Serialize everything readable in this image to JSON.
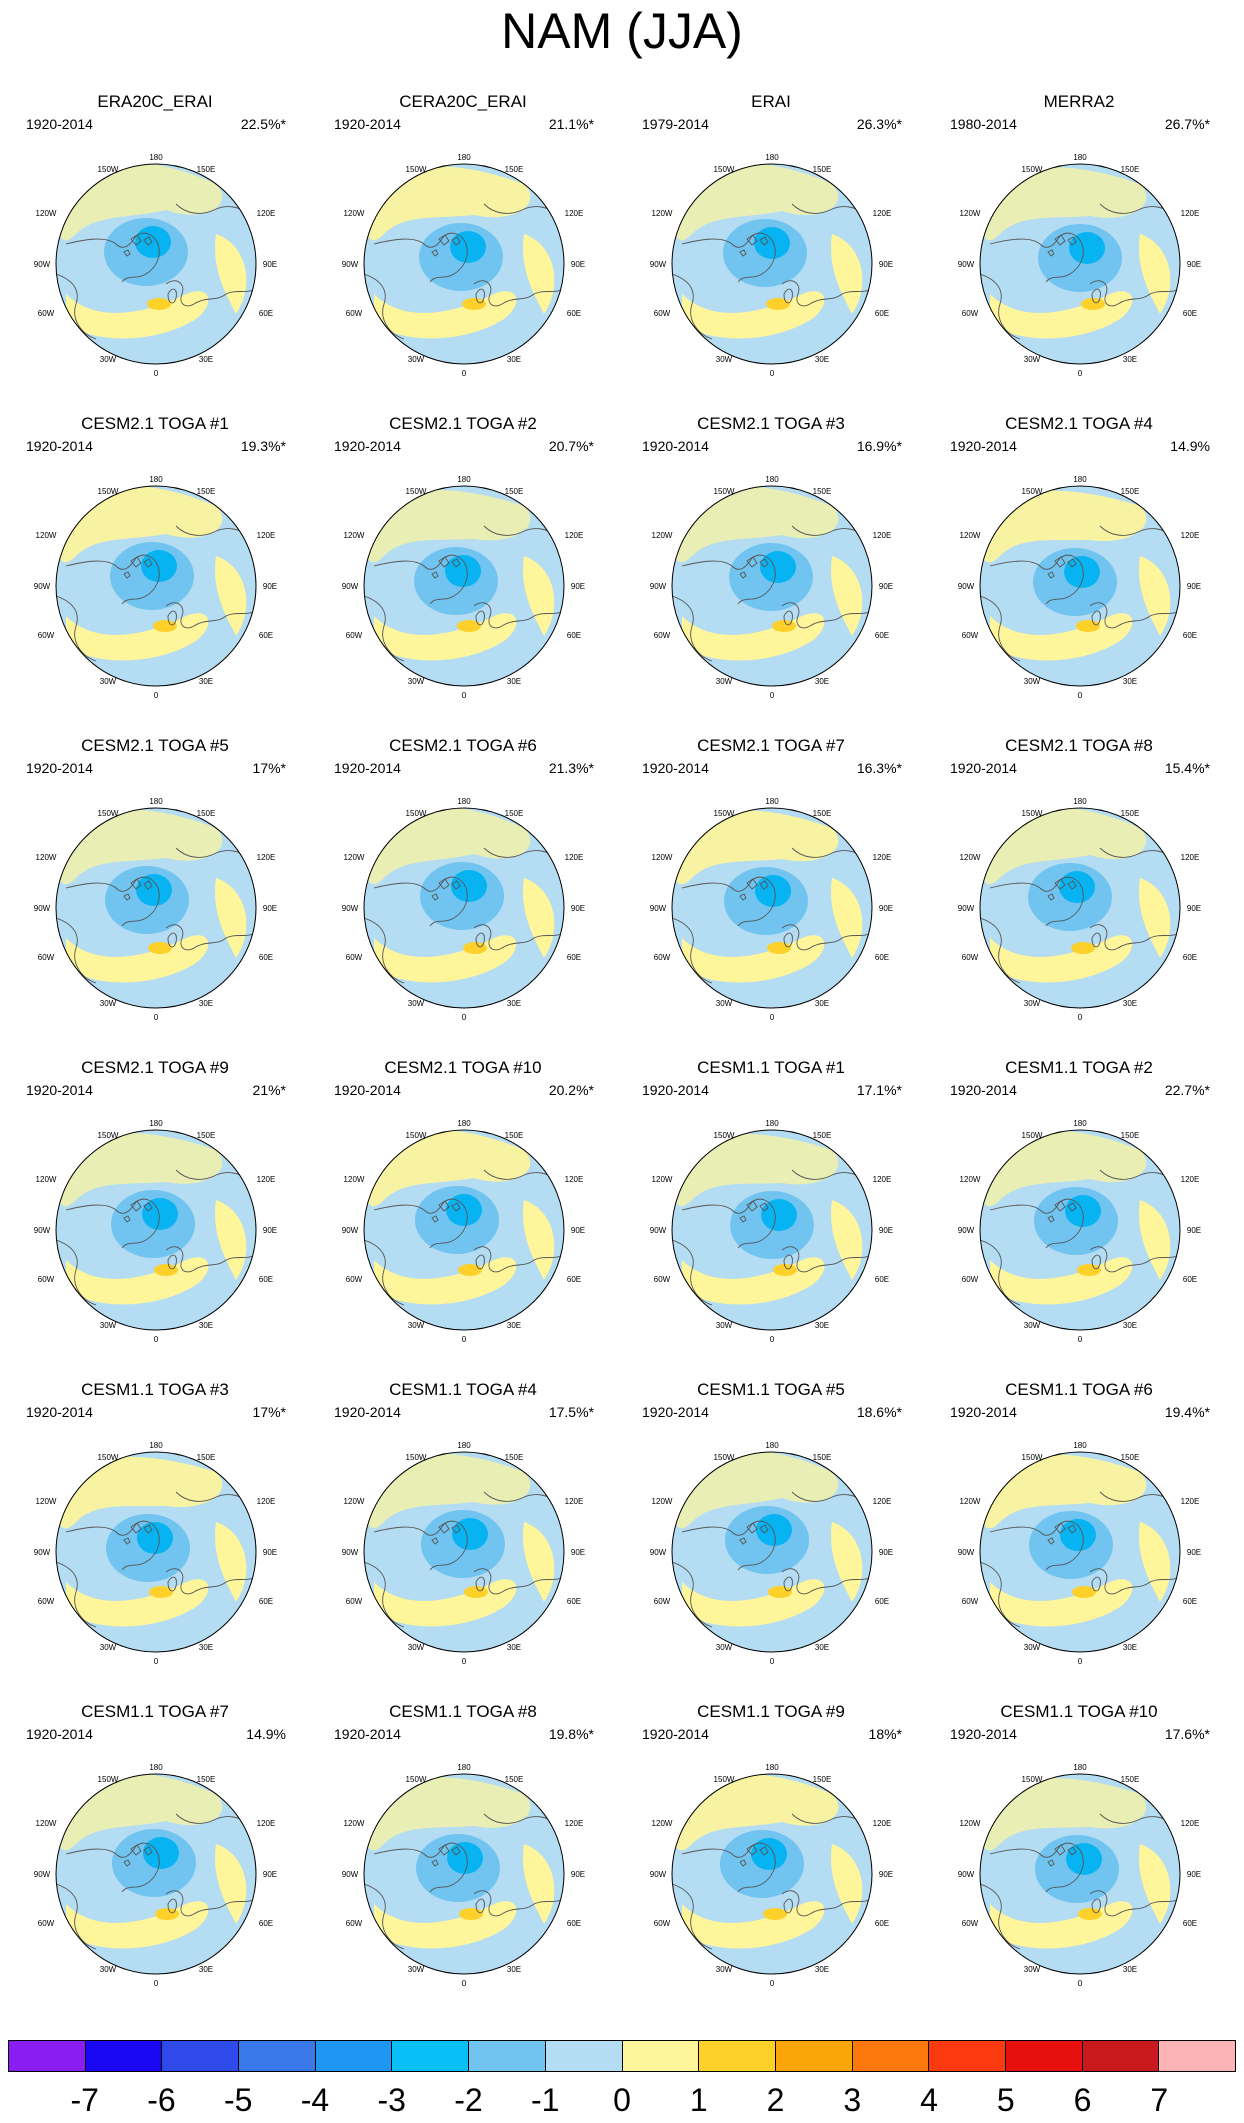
{
  "title": "NAM (JJA)",
  "colors": {
    "ocean_blue": "#b4dcf2",
    "light_yellow": "#fff59a",
    "yellow_orange": "#fdd12a",
    "medium_blue": "#72c4f0",
    "deep_blue": "#08b3f2",
    "coast": "#555555"
  },
  "map_labels": {
    "top": "180",
    "bottom": "0",
    "tl": "150W",
    "tr": "150E",
    "ul": "120W",
    "ur": "120E",
    "ml": "90W",
    "mr": "90E",
    "ll": "60W",
    "lr": "60E",
    "bl": "30W",
    "br": "30E"
  },
  "panels": [
    {
      "title": "ERA20C_ERAI",
      "period": "1920-2014",
      "percent": "22.5%*"
    },
    {
      "title": "CERA20C_ERAI",
      "period": "1920-2014",
      "percent": "21.1%*"
    },
    {
      "title": "ERAI",
      "period": "1979-2014",
      "percent": "26.3%*"
    },
    {
      "title": "MERRA2",
      "period": "1980-2014",
      "percent": "26.7%*"
    },
    {
      "title": "CESM2.1 TOGA #1",
      "period": "1920-2014",
      "percent": "19.3%*"
    },
    {
      "title": "CESM2.1 TOGA #2",
      "period": "1920-2014",
      "percent": "20.7%*"
    },
    {
      "title": "CESM2.1 TOGA #3",
      "period": "1920-2014",
      "percent": "16.9%*"
    },
    {
      "title": "CESM2.1 TOGA #4",
      "period": "1920-2014",
      "percent": "14.9%"
    },
    {
      "title": "CESM2.1 TOGA #5",
      "period": "1920-2014",
      "percent": "17%*"
    },
    {
      "title": "CESM2.1 TOGA #6",
      "period": "1920-2014",
      "percent": "21.3%*"
    },
    {
      "title": "CESM2.1 TOGA #7",
      "period": "1920-2014",
      "percent": "16.3%*"
    },
    {
      "title": "CESM2.1 TOGA #8",
      "period": "1920-2014",
      "percent": "15.4%*"
    },
    {
      "title": "CESM2.1 TOGA #9",
      "period": "1920-2014",
      "percent": "21%*"
    },
    {
      "title": "CESM2.1 TOGA #10",
      "period": "1920-2014",
      "percent": "20.2%*"
    },
    {
      "title": "CESM1.1 TOGA #1",
      "period": "1920-2014",
      "percent": "17.1%*"
    },
    {
      "title": "CESM1.1 TOGA #2",
      "period": "1920-2014",
      "percent": "22.7%*"
    },
    {
      "title": "CESM1.1 TOGA #3",
      "period": "1920-2014",
      "percent": "17%*"
    },
    {
      "title": "CESM1.1 TOGA #4",
      "period": "1920-2014",
      "percent": "17.5%*"
    },
    {
      "title": "CESM1.1 TOGA #5",
      "period": "1920-2014",
      "percent": "18.6%*"
    },
    {
      "title": "CESM1.1 TOGA #6",
      "period": "1920-2014",
      "percent": "19.4%*"
    },
    {
      "title": "CESM1.1 TOGA #7",
      "period": "1920-2014",
      "percent": "14.9%"
    },
    {
      "title": "CESM1.1 TOGA #8",
      "period": "1920-2014",
      "percent": "19.8%*"
    },
    {
      "title": "CESM1.1 TOGA #9",
      "period": "1920-2014",
      "percent": "18%*"
    },
    {
      "title": "CESM1.1 TOGA #10",
      "period": "1920-2014",
      "percent": "17.6%*"
    }
  ],
  "colorbar": {
    "colors": [
      "#8a1ef2",
      "#1a08f5",
      "#2f4ae8",
      "#3a78e8",
      "#1e96f2",
      "#08c0f5",
      "#72c4f0",
      "#b4dcf2",
      "#fff59a",
      "#fdd12a",
      "#fca50a",
      "#fc780a",
      "#fc3a0f",
      "#e8100f",
      "#c81a1e",
      "#fcb4b4"
    ],
    "ticks": [
      "-7",
      "-6",
      "-5",
      "-4",
      "-3",
      "-2",
      "-1",
      "0",
      "1",
      "2",
      "3",
      "4",
      "5",
      "6",
      "7"
    ]
  }
}
